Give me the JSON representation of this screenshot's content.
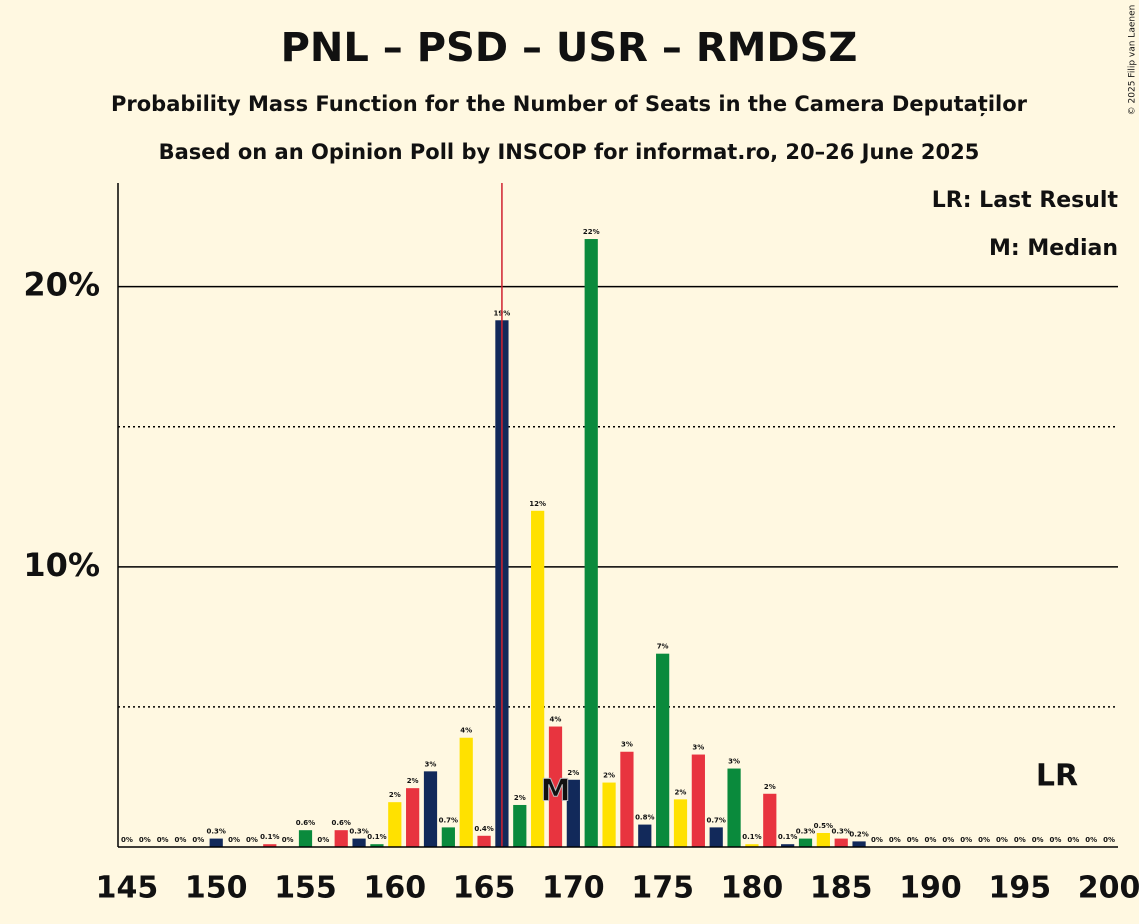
{
  "chart_data": {
    "type": "bar",
    "title": "PNL – PSD – USR – RMDSZ",
    "subtitle": "Probability Mass Function for the Number of Seats in the Camera Deputaților",
    "subtitle2": "Based on an Opinion Poll by INSCOP for informat.ro, 20–26 June 2025",
    "copyright": "© 2025 Filip van Laenen",
    "legend": [
      "LR: Last Result",
      "M: Median"
    ],
    "x": [
      145,
      146,
      147,
      148,
      149,
      150,
      151,
      152,
      153,
      154,
      155,
      156,
      157,
      158,
      159,
      160,
      161,
      162,
      163,
      164,
      165,
      166,
      167,
      168,
      169,
      170,
      171,
      172,
      173,
      174,
      175,
      176,
      177,
      178,
      179,
      180,
      181,
      182,
      183,
      184,
      185,
      186,
      187,
      188,
      189,
      190,
      191,
      192,
      193,
      194,
      195,
      196,
      197,
      198,
      199,
      200
    ],
    "values": [
      0,
      0,
      0,
      0,
      0,
      0.3,
      0,
      0,
      0.1,
      0,
      0.6,
      0,
      0.6,
      0.3,
      0.1,
      1.6,
      2.1,
      2.7,
      0.7,
      3.9,
      0.4,
      18.8,
      1.5,
      12.0,
      4.3,
      2.4,
      21.7,
      2.3,
      3.4,
      0.8,
      6.9,
      1.7,
      3.3,
      0.7,
      2.8,
      0.1,
      1.9,
      0.1,
      0.3,
      0.5,
      0.3,
      0.2,
      0,
      0,
      0,
      0,
      0,
      0,
      0,
      0,
      0,
      0,
      0,
      0,
      0,
      0
    ],
    "value_labels": [
      "0%",
      "0%",
      "0%",
      "0%",
      "0%",
      "0.3%",
      "0%",
      "0%",
      "0.1%",
      "0%",
      "0.6%",
      "0%",
      "0.6%",
      "0.3%",
      "0.1%",
      "2%",
      "2%",
      "3%",
      "0.7%",
      "4%",
      "0.4%",
      "19%",
      "2%",
      "12%",
      "4%",
      "2%",
      "22%",
      "2%",
      "3%",
      "0.8%",
      "7%",
      "2%",
      "3%",
      "0.7%",
      "3%",
      "0.1%",
      "2%",
      "0.1%",
      "0.3%",
      "0.5%",
      "0.3%",
      "0.2%",
      "0%",
      "0%",
      "0%",
      "0%",
      "0%",
      "0%",
      "0%",
      "0%",
      "0%",
      "0%",
      "0%",
      "0%",
      "0%",
      "0%"
    ],
    "colors": [
      "#e8343f",
      "#12295a",
      "#0a8a3c",
      "#ffe100"
    ],
    "xlim": [
      144.5,
      200.5
    ],
    "xticks": [
      145,
      150,
      155,
      160,
      165,
      170,
      175,
      180,
      185,
      190,
      195,
      200
    ],
    "ylim": [
      0,
      23.7
    ],
    "yticks": [
      {
        "value": 10,
        "label": "10%"
      },
      {
        "value": 20,
        "label": "20%"
      }
    ],
    "minor_yticks": [
      5,
      15
    ],
    "grid": true,
    "last_result": 166,
    "last_result_label": "LR",
    "median": 169,
    "median_label": "M"
  }
}
